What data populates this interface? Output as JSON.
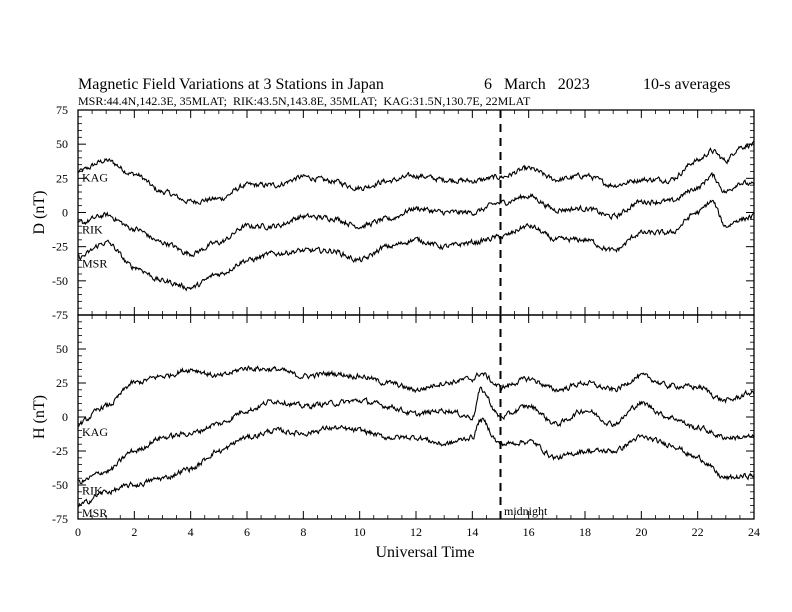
{
  "title": "Magnetic Field Variations at 3 Stations in Japan",
  "date_text": "6   March   2023",
  "avg_text": "10-s averages",
  "subtitle": "MSR:44.4N,142.3E, 35MLAT;  RIK:43.5N,143.8E, 35MLAT;  KAG:31.5N,130.7E, 22MLAT",
  "xlabel": "Universal Time",
  "midnight_label": "midnight",
  "colors": {
    "line": "#000000",
    "background": "#ffffff"
  },
  "chart_data": [
    {
      "type": "line",
      "panel": "top",
      "ylabel": "D (nT)",
      "xlim": [
        0,
        24
      ],
      "ylim": [
        -75,
        75
      ],
      "xticks": [
        0,
        2,
        4,
        6,
        8,
        10,
        12,
        14,
        16,
        18,
        20,
        22,
        24
      ],
      "yticks": [
        -75,
        -50,
        -25,
        0,
        25,
        50,
        75
      ],
      "vline": 15,
      "x": [
        0,
        1,
        2,
        3,
        4,
        5,
        6,
        7,
        8,
        9,
        10,
        11,
        12,
        13,
        14,
        15,
        16,
        17,
        18,
        19,
        20,
        21,
        22,
        22.5,
        23,
        23.5,
        24
      ],
      "series": [
        {
          "name": "KAG",
          "values": [
            30,
            38,
            28,
            15,
            8,
            10,
            20,
            20,
            26,
            23,
            18,
            23,
            27,
            24,
            23,
            26,
            32,
            24,
            27,
            20,
            24,
            24,
            38,
            45,
            38,
            48,
            50
          ]
        },
        {
          "name": "RIK",
          "values": [
            -8,
            -2,
            -12,
            -22,
            -30,
            -22,
            -10,
            -10,
            -3,
            -4,
            -10,
            -5,
            3,
            0,
            0,
            7,
            12,
            2,
            3,
            -3,
            8,
            8,
            18,
            27,
            15,
            22,
            20
          ]
        },
        {
          "name": "MSR",
          "values": [
            -33,
            -22,
            -40,
            -50,
            -55,
            -45,
            -35,
            -30,
            -28,
            -28,
            -35,
            -25,
            -20,
            -25,
            -22,
            -18,
            -10,
            -20,
            -20,
            -28,
            -15,
            -15,
            0,
            8,
            -10,
            -5,
            -3
          ]
        }
      ],
      "label_positions": "left"
    },
    {
      "type": "line",
      "panel": "bottom",
      "ylabel": "H (nT)",
      "xlim": [
        0,
        24
      ],
      "ylim": [
        -75,
        75
      ],
      "xticks": [
        0,
        2,
        4,
        6,
        8,
        10,
        12,
        14,
        16,
        18,
        20,
        22,
        24
      ],
      "yticks": [
        -75,
        -50,
        -25,
        0,
        25,
        50,
        75
      ],
      "vline": 15,
      "x": [
        0,
        1,
        2,
        3,
        4,
        5,
        6,
        7,
        8,
        9,
        10,
        11,
        12,
        13,
        14,
        14.3,
        15,
        16,
        17,
        18,
        19,
        20,
        21,
        22,
        23,
        24
      ],
      "series": [
        {
          "name": "KAG",
          "values": [
            -5,
            8,
            25,
            30,
            35,
            30,
            36,
            35,
            30,
            32,
            30,
            25,
            20,
            25,
            28,
            32,
            22,
            28,
            20,
            25,
            20,
            30,
            23,
            22,
            12,
            18
          ]
        },
        {
          "name": "RIK",
          "values": [
            -48,
            -40,
            -25,
            -15,
            -12,
            -5,
            5,
            12,
            8,
            10,
            12,
            8,
            2,
            5,
            0,
            20,
            0,
            8,
            -5,
            5,
            -5,
            10,
            0,
            -8,
            -15,
            -15
          ]
        },
        {
          "name": "MSR",
          "values": [
            -65,
            -55,
            -50,
            -45,
            -38,
            -25,
            -15,
            -10,
            -12,
            -8,
            -10,
            -15,
            -15,
            -20,
            -15,
            -2,
            -20,
            -18,
            -30,
            -25,
            -25,
            -15,
            -20,
            -30,
            -45,
            -43
          ]
        }
      ],
      "label_positions": "left"
    }
  ]
}
